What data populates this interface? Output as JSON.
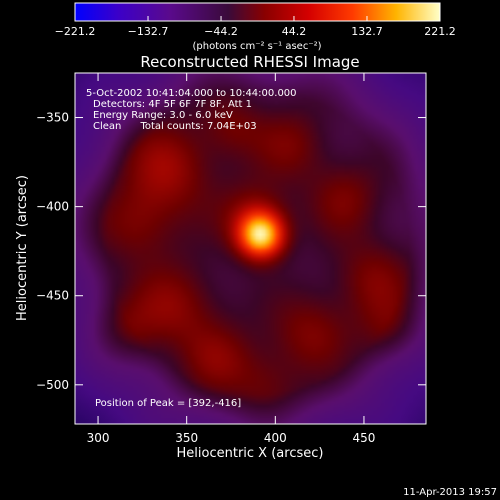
{
  "chart_data": {
    "type": "heatmap",
    "title": "Reconstructed RHESSI Image",
    "xlabel": "Heliocentric X (arcsec)",
    "ylabel": "Heliocentric Y (arcsec)",
    "xlim": [
      287,
      485
    ],
    "ylim": [
      -522,
      -325
    ],
    "x_ticks": [
      300,
      350,
      400,
      450
    ],
    "y_ticks": [
      -350,
      -400,
      -450,
      -500
    ],
    "colorbar": {
      "ticks": [
        "-221.2",
        "-132.7",
        "-44.2",
        "44.2",
        "132.7",
        "221.2"
      ],
      "min": -221.2,
      "max": 221.2,
      "units": "(photons cm⁻² s⁻¹ asec⁻²)"
    },
    "info_lines": [
      "5-Oct-2002 10:41:04.000 to 10:44:00.000",
      "Detectors: 4F 5F 6F 7F 8F, Att 1",
      "Energy Range: 3.0 - 6.0 keV",
      "Clean      Total counts: 7.04E+03"
    ],
    "peak_label": "Position of Peak = [392,-416]",
    "peak": {
      "x": 392,
      "y": -416,
      "value": 221.2
    },
    "sources": [
      {
        "x": 392,
        "y": -416,
        "sigma": 9,
        "amp": 221
      },
      {
        "x": 388,
        "y": -405,
        "sigma": 14,
        "amp": 60
      },
      {
        "x": 340,
        "y": -378,
        "sigma": 18,
        "amp": 70
      },
      {
        "x": 322,
        "y": -410,
        "sigma": 16,
        "amp": 55
      },
      {
        "x": 345,
        "y": -455,
        "sigma": 17,
        "amp": 60
      },
      {
        "x": 368,
        "y": -485,
        "sigma": 15,
        "amp": 50
      },
      {
        "x": 420,
        "y": -470,
        "sigma": 16,
        "amp": 55
      },
      {
        "x": 455,
        "y": -440,
        "sigma": 16,
        "amp": 52
      },
      {
        "x": 440,
        "y": -395,
        "sigma": 15,
        "amp": 50
      },
      {
        "x": 410,
        "y": -365,
        "sigma": 15,
        "amp": 48
      },
      {
        "x": 375,
        "y": -355,
        "sigma": 13,
        "amp": 45
      },
      {
        "x": 315,
        "y": -470,
        "sigma": 14,
        "amp": 40
      },
      {
        "x": 395,
        "y": -500,
        "sigma": 14,
        "amp": 42
      },
      {
        "x": 465,
        "y": -470,
        "sigma": 13,
        "amp": 38
      }
    ]
  },
  "footer_date": "11-Apr-2013 19:57"
}
